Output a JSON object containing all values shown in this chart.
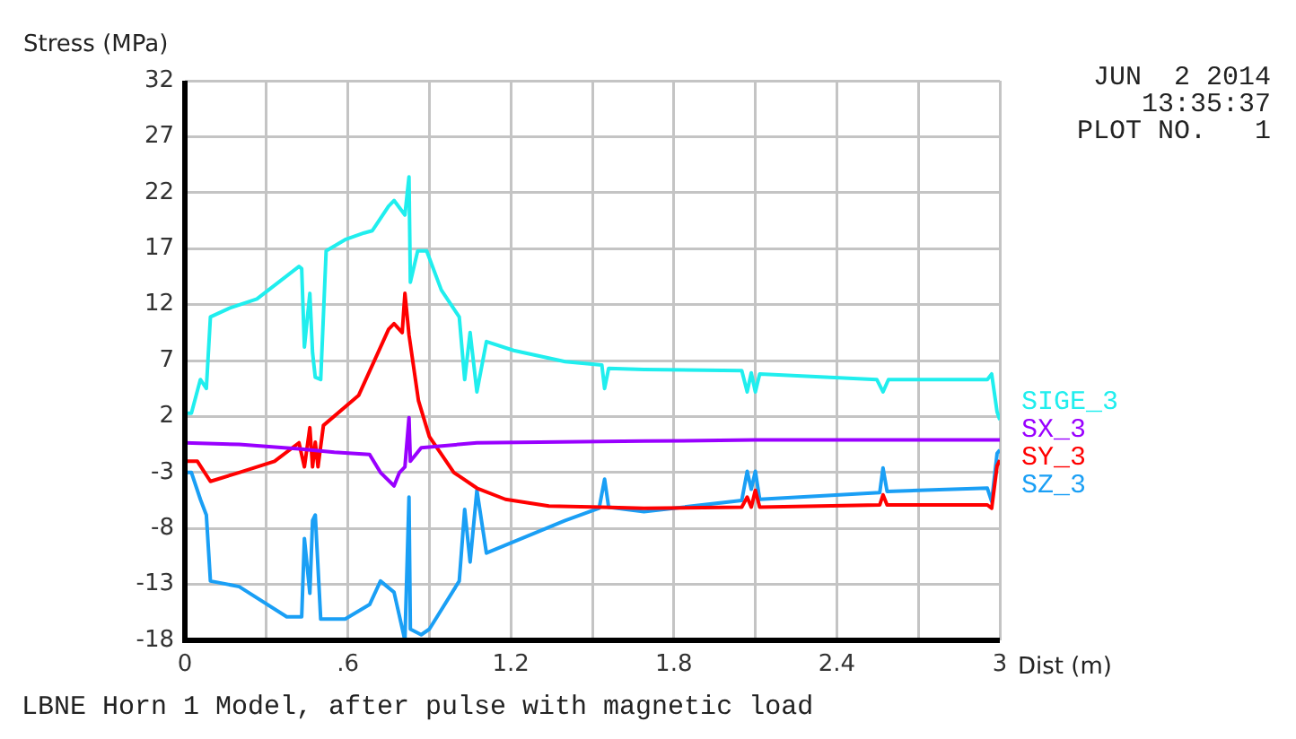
{
  "chart_data": {
    "type": "line",
    "xlabel": "Dist (m)",
    "ylabel": "Stress (MPa)",
    "annotations": [
      "JUN  2 2014",
      "13:35:37",
      "PLOT NO.   1",
      "LBNE Horn 1 Model, after pulse with magnetic load"
    ],
    "xlim": [
      0,
      3
    ],
    "xticks": [
      0,
      {
        "value": 0.3,
        "label": null
      },
      {
        "value": 0.6,
        "label": ".6"
      },
      {
        "value": 0.9,
        "label": null
      },
      1.2,
      {
        "value": 1.5,
        "label": null
      },
      1.8,
      {
        "value": 2.1,
        "label": null
      },
      2.4,
      {
        "value": 2.7,
        "label": null
      },
      3
    ],
    "ylim": [
      -18,
      32
    ],
    "yticks": [
      -18,
      -13,
      -8,
      -3,
      2,
      7,
      12,
      17,
      22,
      27,
      32
    ],
    "grid": true,
    "legend": "right",
    "series": [
      {
        "name": "SIGE_3",
        "color": "#20eeee",
        "x": [
          0,
          0.024,
          0.057,
          0.079,
          0.094,
          0.166,
          0.265,
          0.42,
          0.43,
          0.44,
          0.46,
          0.47,
          0.48,
          0.5,
          0.52,
          0.59,
          0.66,
          0.69,
          0.75,
          0.77,
          0.81,
          0.825,
          0.83,
          0.857,
          0.89,
          0.944,
          1.01,
          1.03,
          1.05,
          1.075,
          1.11,
          1.21,
          1.4,
          1.535,
          1.545,
          1.56,
          1.69,
          2.05,
          2.07,
          2.085,
          2.1,
          2.116,
          2.547,
          2.57,
          2.59,
          2.954,
          2.97,
          2.99,
          3
        ],
        "values": [
          2.3,
          2.3,
          5.3,
          4.5,
          10.9,
          11.7,
          12.5,
          15.4,
          15.2,
          8.2,
          13,
          7.7,
          5.5,
          5.3,
          16.8,
          17.8,
          18.4,
          18.6,
          20.8,
          21.3,
          20,
          23.4,
          14,
          16.8,
          16.8,
          13.3,
          10.9,
          5.3,
          9.5,
          4.2,
          8.7,
          7.9,
          6.9,
          6.6,
          4.5,
          6.3,
          6.2,
          6.1,
          4.2,
          5.9,
          4.2,
          5.8,
          5.3,
          4.2,
          5.3,
          5.3,
          5.8,
          2.4,
          1.7
        ]
      },
      {
        "name": "SX_3",
        "color": "#9900ff",
        "x": [
          0,
          0.2,
          0.42,
          0.55,
          0.68,
          0.72,
          0.77,
          0.79,
          0.81,
          0.825,
          0.83,
          0.87,
          1.075,
          1.69,
          2.1,
          3
        ],
        "values": [
          -0.35,
          -0.5,
          -0.9,
          -1.2,
          -1.4,
          -3,
          -4.2,
          -3,
          -2.5,
          1.9,
          -2,
          -0.8,
          -0.35,
          -0.2,
          -0.1,
          -0.1
        ]
      },
      {
        "name": "SY_3",
        "color": "#ff0000",
        "x": [
          0,
          0.046,
          0.094,
          0.2,
          0.33,
          0.42,
          0.44,
          0.46,
          0.47,
          0.48,
          0.49,
          0.51,
          0.64,
          0.75,
          0.77,
          0.8,
          0.81,
          0.825,
          0.86,
          0.9,
          0.99,
          1.075,
          1.18,
          1.34,
          1.535,
          1.69,
          2.05,
          2.07,
          2.085,
          2.1,
          2.116,
          2.558,
          2.57,
          2.585,
          2.954,
          2.97,
          2.99,
          3
        ],
        "values": [
          -2,
          -2,
          -3.8,
          -3,
          -2,
          -0.35,
          -2.5,
          1,
          -2.5,
          -0.3,
          -2.5,
          1.2,
          3.9,
          9.8,
          10.3,
          9.5,
          13,
          9.3,
          3.4,
          0.2,
          -3,
          -4.4,
          -5.4,
          -6,
          -6.1,
          -6.2,
          -6.1,
          -5.2,
          -6.1,
          -4.6,
          -6.1,
          -5.9,
          -5,
          -5.9,
          -5.9,
          -6.2,
          -2.4,
          -1.9
        ]
      },
      {
        "name": "SZ_3",
        "color": "#1a9ff5",
        "x": [
          0,
          0.024,
          0.057,
          0.079,
          0.094,
          0.2,
          0.375,
          0.43,
          0.44,
          0.46,
          0.47,
          0.48,
          0.5,
          0.59,
          0.68,
          0.72,
          0.77,
          0.81,
          0.825,
          0.83,
          0.87,
          0.9,
          1.01,
          1.03,
          1.05,
          1.075,
          1.11,
          1.21,
          1.4,
          1.525,
          1.545,
          1.56,
          1.69,
          2.05,
          2.07,
          2.085,
          2.1,
          2.116,
          2.558,
          2.57,
          2.585,
          2.954,
          2.97,
          2.99,
          3
        ],
        "values": [
          -3,
          -3,
          -5.4,
          -6.8,
          -12.7,
          -13.2,
          -15.9,
          -15.9,
          -8.9,
          -13.8,
          -7.3,
          -6.8,
          -16.1,
          -16.1,
          -14.8,
          -12.7,
          -13.7,
          -18,
          -5.2,
          -17,
          -17.5,
          -17,
          -12.7,
          -6.3,
          -11,
          -4.6,
          -10.2,
          -9.2,
          -7.3,
          -6.2,
          -3.6,
          -6.1,
          -6.5,
          -5.5,
          -2.9,
          -4.5,
          -2.9,
          -5.4,
          -4.8,
          -2.6,
          -4.7,
          -4.4,
          -5.6,
          -1.3,
          -1
        ]
      }
    ]
  }
}
